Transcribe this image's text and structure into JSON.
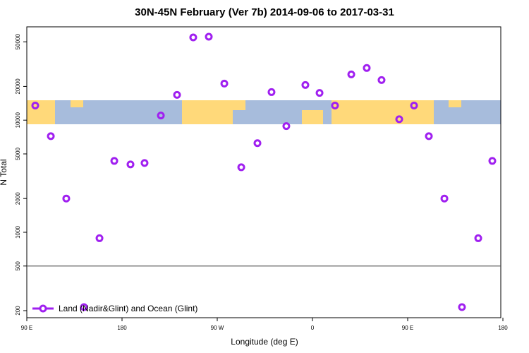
{
  "chart_data": {
    "type": "scatter",
    "title": "30N-45N February (Ver 7b)   2014-09-06 to 2017-03-31",
    "x_label": "Longitude (deg E)",
    "y_label": "N Total",
    "log_scale": true,
    "xlim": [
      90,
      538
    ],
    "ylim": [
      173,
      68000
    ],
    "xticks": [
      {
        "value": 90,
        "label": "90 E"
      },
      {
        "value": 180,
        "label": "180"
      },
      {
        "value": 270,
        "label": "90 W"
      },
      {
        "value": 360,
        "label": "0"
      },
      {
        "value": 450,
        "label": "90 E"
      },
      {
        "value": 540,
        "label": "180"
      }
    ],
    "yticks": [
      200,
      500,
      1000,
      2000,
      5000,
      10000,
      20000,
      50000
    ],
    "reference_line": 500,
    "legend": "lower left",
    "series": [
      {
        "name": "Land (Nadir&Glint) and Ocean (Glint)",
        "color": "#a020f0",
        "x": [
          98,
          112.7,
          127.3,
          144,
          158.7,
          172.7,
          188,
          201.3,
          216.7,
          232,
          247.3,
          262,
          276.7,
          292.7,
          308,
          321.3,
          335.3,
          353.3,
          366.7,
          381.3,
          396.7,
          411.3,
          425.3,
          442,
          456,
          470,
          484.7,
          501.3,
          516.7,
          530
        ],
        "values": [
          13500,
          7200,
          2000,
          215,
          885,
          4330,
          4030,
          4150,
          11000,
          16800,
          54700,
          55500,
          21200,
          3800,
          6240,
          17800,
          8850,
          20600,
          17500,
          13500,
          25600,
          29200,
          22800,
          10200,
          13500,
          7200,
          2000,
          215,
          885,
          4330
        ]
      }
    ]
  }
}
